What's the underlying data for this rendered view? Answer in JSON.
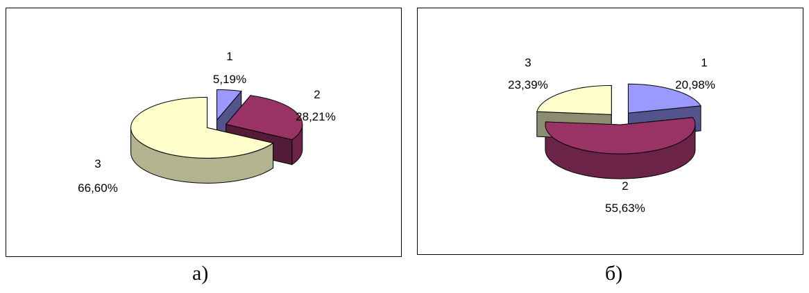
{
  "chart_data": [
    {
      "type": "pie",
      "style": "3d-exploded",
      "caption": "а)",
      "slices": [
        {
          "category": "1",
          "value_label": "5,19%",
          "value": 5.19,
          "color": "#9999ff"
        },
        {
          "category": "2",
          "value_label": "28,21%",
          "value": 28.21,
          "color": "#993366"
        },
        {
          "category": "3",
          "value_label": "66,60%",
          "value": 66.6,
          "color": "#ffffcc"
        }
      ]
    },
    {
      "type": "pie",
      "style": "3d-exploded",
      "caption": "б)",
      "slices": [
        {
          "category": "1",
          "value_label": "20,98%",
          "value": 20.98,
          "color": "#9999ff"
        },
        {
          "category": "2",
          "value_label": "55,63%",
          "value": 55.63,
          "color": "#993366"
        },
        {
          "category": "3",
          "value_label": "23,39%",
          "value": 23.39,
          "color": "#ffffcc"
        }
      ]
    }
  ]
}
